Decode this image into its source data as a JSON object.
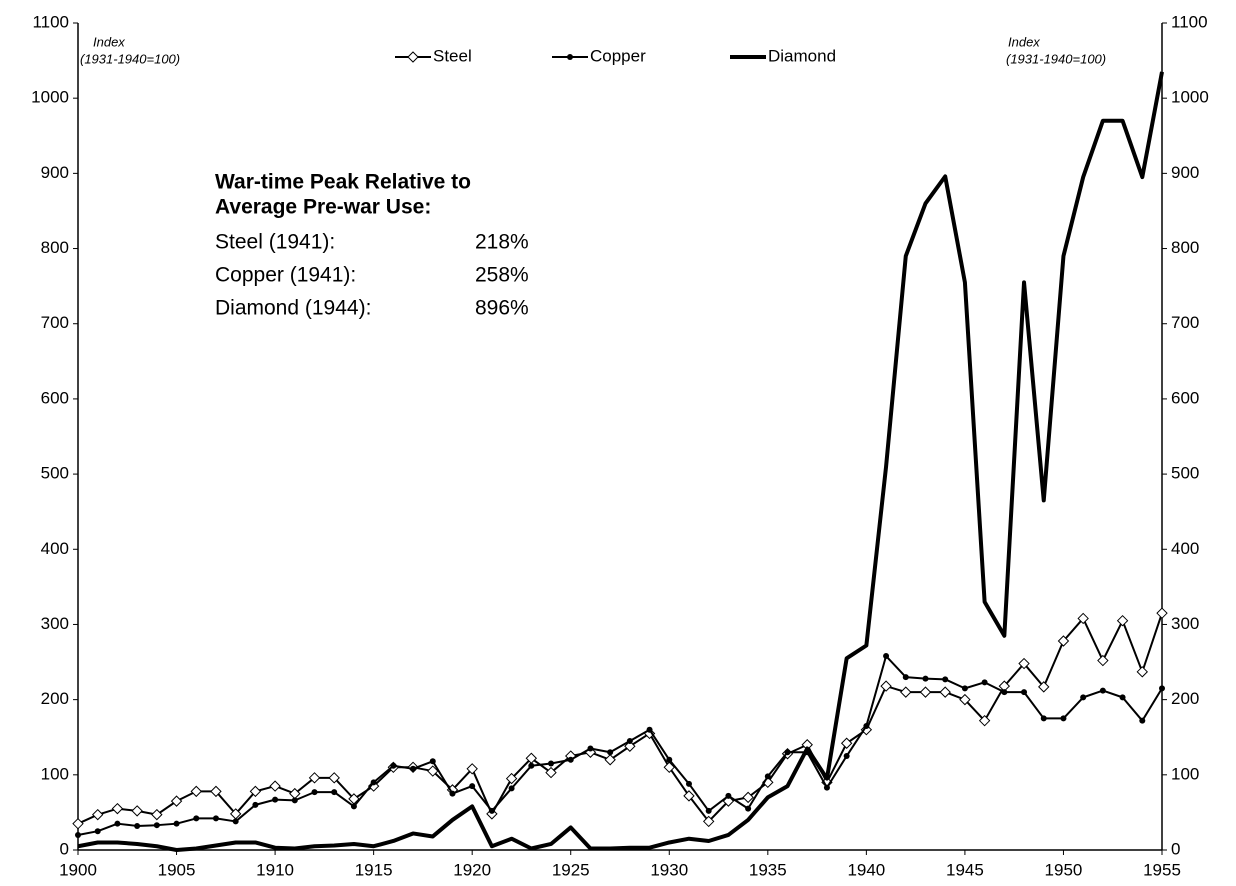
{
  "chart_data": {
    "type": "line",
    "axis_label_left": [
      "Index",
      "(1931-1940=100)"
    ],
    "axis_label_right": [
      "Index",
      "(1931-1940=100)"
    ],
    "annotation": {
      "heading": [
        "War-time Peak Relative to",
        "Average Pre-war Use:"
      ],
      "rows": [
        {
          "label": "Steel (1941):",
          "text": "218%"
        },
        {
          "label": "Copper (1941):",
          "text": "258%"
        },
        {
          "label": "Diamond (1944):",
          "text": "896%"
        }
      ]
    },
    "x": [
      1900,
      1901,
      1902,
      1903,
      1904,
      1905,
      1906,
      1907,
      1908,
      1909,
      1910,
      1911,
      1912,
      1913,
      1914,
      1915,
      1916,
      1917,
      1918,
      1919,
      1920,
      1921,
      1922,
      1923,
      1924,
      1925,
      1926,
      1927,
      1928,
      1929,
      1930,
      1931,
      1932,
      1933,
      1934,
      1935,
      1936,
      1937,
      1938,
      1939,
      1940,
      1941,
      1942,
      1943,
      1944,
      1945,
      1946,
      1947,
      1948,
      1949,
      1950,
      1951,
      1952,
      1953,
      1954,
      1955
    ],
    "series": [
      {
        "name": "Steel",
        "color": "#000000",
        "marker": "diamond-open",
        "width": 2,
        "values": [
          35,
          47,
          55,
          52,
          47,
          65,
          78,
          78,
          48,
          78,
          85,
          75,
          96,
          96,
          68,
          85,
          110,
          110,
          105,
          80,
          108,
          48,
          95,
          122,
          103,
          125,
          130,
          120,
          138,
          155,
          110,
          72,
          38,
          65,
          70,
          90,
          128,
          140,
          90,
          142,
          160,
          218,
          210,
          210,
          210,
          200,
          172,
          218,
          248,
          217,
          278,
          308,
          252,
          305,
          237,
          315
        ]
      },
      {
        "name": "Copper",
        "color": "#000000",
        "marker": "dot",
        "width": 2,
        "values": [
          20,
          25,
          35,
          32,
          33,
          35,
          42,
          42,
          38,
          60,
          67,
          66,
          77,
          77,
          58,
          90,
          112,
          108,
          118,
          75,
          85,
          52,
          82,
          112,
          115,
          120,
          135,
          130,
          145,
          160,
          120,
          88,
          52,
          72,
          55,
          98,
          130,
          130,
          83,
          125,
          165,
          258,
          230,
          228,
          227,
          215,
          223,
          210,
          210,
          175,
          175,
          203,
          212,
          203,
          172,
          215
        ]
      },
      {
        "name": "Diamond",
        "color": "#000000",
        "marker": "none",
        "width": 4,
        "values": [
          5,
          10,
          10,
          8,
          5,
          0,
          2,
          6,
          10,
          10,
          3,
          2,
          5,
          6,
          8,
          5,
          12,
          22,
          18,
          40,
          58,
          5,
          15,
          2,
          8,
          30,
          2,
          2,
          3,
          3,
          10,
          15,
          12,
          20,
          40,
          70,
          85,
          135,
          95,
          255,
          272,
          510,
          790,
          860,
          896,
          755,
          330,
          285,
          755,
          465,
          790,
          895,
          970,
          970,
          895,
          1035
        ]
      }
    ],
    "xlim": [
      1900,
      1955
    ],
    "xticks": [
      1900,
      1905,
      1910,
      1915,
      1920,
      1925,
      1930,
      1935,
      1940,
      1945,
      1950,
      1955
    ],
    "ylim": [
      0,
      1100
    ],
    "yticks": [
      0,
      100,
      200,
      300,
      400,
      500,
      600,
      700,
      800,
      900,
      1000,
      1100
    ],
    "y2lim": [
      0,
      1100
    ],
    "y2ticks": [
      0,
      100,
      200,
      300,
      400,
      500,
      600,
      700,
      800,
      900,
      1000,
      1100
    ],
    "grid": false,
    "legend": "top"
  }
}
